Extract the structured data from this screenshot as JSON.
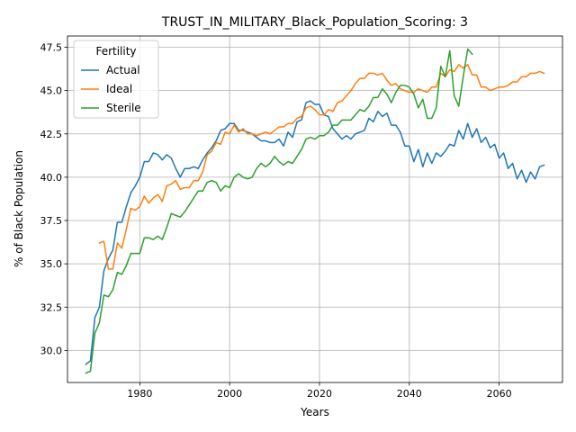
{
  "chart_data": {
    "type": "line",
    "title": "TRUST_IN_MILITARY_Black_Population_Scoring: 3",
    "xlabel": "Years",
    "ylabel": "% of Black Population",
    "xlim": [
      1963.9,
      2074.1
    ],
    "ylim": [
      28.15,
      48.15
    ],
    "xticks": [
      1980,
      2000,
      2020,
      2040,
      2060
    ],
    "yticks": [
      30.0,
      32.5,
      35.0,
      37.5,
      40.0,
      42.5,
      45.0,
      47.5
    ],
    "xtick_labels": [
      "1980",
      "2000",
      "2020",
      "2040",
      "2060"
    ],
    "ytick_labels": [
      "30.0",
      "32.5",
      "35.0",
      "37.5",
      "40.0",
      "42.5",
      "45.0",
      "47.5"
    ],
    "grid": true,
    "legend": {
      "title": "Fertility",
      "placement": "top-left"
    },
    "series": [
      {
        "name": "Actual",
        "color": "#1f77b4",
        "x": [
          1968,
          1969,
          1970,
          1971,
          1972,
          1973,
          1974,
          1975,
          1976,
          1977,
          1978,
          1979,
          1980,
          1981,
          1982,
          1983,
          1984,
          1985,
          1986,
          1987,
          1988,
          1989,
          1990,
          1991,
          1992,
          1993,
          1994,
          1995,
          1996,
          1997,
          1998,
          1999,
          2000,
          2001,
          2002,
          2003,
          2004,
          2005,
          2006,
          2007,
          2008,
          2009,
          2010,
          2011,
          2012,
          2013,
          2014,
          2015,
          2016,
          2017,
          2018,
          2019,
          2020,
          2021,
          2022,
          2023,
          2024,
          2025,
          2026,
          2027,
          2028,
          2029,
          2030,
          2031,
          2032,
          2033,
          2034,
          2035,
          2036,
          2037,
          2038,
          2039,
          2040,
          2041,
          2042,
          2043,
          2044,
          2045,
          2046,
          2047,
          2048,
          2049,
          2050,
          2051,
          2052,
          2053,
          2054,
          2055,
          2056,
          2057,
          2058,
          2059,
          2060,
          2061,
          2062,
          2063,
          2064,
          2065,
          2066,
          2067,
          2068,
          2069,
          2070
        ],
        "y": [
          29.2,
          29.4,
          31.9,
          32.5,
          34.6,
          35.3,
          35.8,
          37.4,
          37.4,
          38.3,
          39.1,
          39.5,
          40.0,
          40.9,
          40.9,
          41.4,
          41.3,
          41.0,
          41.3,
          41.1,
          40.5,
          40.0,
          40.5,
          40.5,
          40.6,
          40.5,
          41.0,
          41.4,
          41.7,
          42.1,
          42.7,
          42.8,
          43.1,
          43.1,
          42.7,
          42.7,
          42.6,
          42.5,
          42.3,
          42.1,
          42.1,
          42.0,
          42.0,
          42.2,
          41.8,
          42.6,
          42.3,
          43.2,
          43.3,
          44.3,
          44.4,
          44.2,
          44.2,
          43.6,
          43.5,
          42.8,
          42.5,
          42.2,
          42.4,
          42.2,
          42.5,
          42.6,
          42.7,
          43.4,
          43.2,
          43.8,
          43.5,
          43.7,
          43.0,
          43.0,
          42.6,
          41.8,
          41.8,
          40.9,
          41.6,
          40.6,
          41.4,
          40.8,
          41.4,
          41.2,
          41.5,
          41.9,
          41.8,
          42.7,
          42.2,
          43.1,
          42.3,
          42.8,
          42.0,
          42.3,
          41.7,
          41.9,
          41.1,
          41.4,
          40.5,
          40.8,
          39.9,
          40.4,
          39.7,
          40.3,
          39.9,
          40.6,
          40.7
        ]
      },
      {
        "name": "Ideal",
        "color": "#ff7f0e",
        "x": [
          1971,
          1972,
          1973,
          1974,
          1975,
          1976,
          1977,
          1978,
          1979,
          1980,
          1981,
          1982,
          1983,
          1984,
          1985,
          1986,
          1987,
          1988,
          1989,
          1990,
          1991,
          1992,
          1993,
          1994,
          1995,
          1996,
          1997,
          1998,
          1999,
          2000,
          2001,
          2002,
          2003,
          2004,
          2005,
          2006,
          2007,
          2008,
          2009,
          2010,
          2011,
          2012,
          2013,
          2014,
          2015,
          2016,
          2017,
          2018,
          2019,
          2020,
          2021,
          2022,
          2023,
          2024,
          2025,
          2026,
          2027,
          2028,
          2029,
          2030,
          2031,
          2032,
          2033,
          2034,
          2035,
          2036,
          2037,
          2038,
          2039,
          2040,
          2041,
          2042,
          2043,
          2044,
          2045,
          2046,
          2047,
          2048,
          2049,
          2050,
          2051,
          2052,
          2053,
          2054,
          2055,
          2056,
          2057,
          2058,
          2059,
          2060,
          2061,
          2062,
          2063,
          2064,
          2065,
          2066,
          2067,
          2068,
          2069,
          2070
        ],
        "y": [
          36.2,
          36.3,
          34.7,
          34.7,
          36.2,
          35.9,
          37.0,
          38.2,
          38.1,
          38.3,
          38.9,
          38.5,
          38.8,
          39.0,
          38.6,
          39.5,
          39.6,
          39.8,
          39.3,
          39.4,
          39.4,
          39.8,
          39.8,
          40.3,
          41.3,
          41.5,
          42.0,
          41.9,
          42.6,
          42.5,
          43.0,
          42.6,
          42.8,
          42.5,
          42.5,
          42.4,
          42.5,
          42.6,
          42.5,
          42.7,
          42.9,
          42.9,
          43.1,
          43.1,
          43.4,
          43.5,
          44.0,
          44.1,
          43.9,
          43.6,
          43.6,
          43.9,
          43.8,
          44.3,
          44.4,
          44.7,
          45.0,
          45.4,
          45.7,
          45.7,
          46.0,
          46.0,
          45.9,
          46.0,
          45.6,
          45.3,
          45.4,
          45.1,
          45.0,
          44.9,
          44.9,
          45.1,
          45.0,
          44.9,
          45.2,
          45.2,
          46.0,
          45.8,
          46.2,
          46.1,
          46.5,
          46.3,
          46.5,
          45.9,
          45.9,
          45.2,
          45.2,
          45.0,
          45.1,
          45.2,
          45.2,
          45.3,
          45.5,
          45.5,
          45.8,
          45.8,
          46.0,
          46.0,
          46.1,
          46.0
        ]
      },
      {
        "name": "Sterile",
        "color": "#2ca02c",
        "x": [
          1968,
          1969,
          1970,
          1971,
          1972,
          1973,
          1974,
          1975,
          1976,
          1977,
          1978,
          1979,
          1980,
          1981,
          1982,
          1983,
          1984,
          1985,
          1986,
          1987,
          1988,
          1989,
          1990,
          1991,
          1992,
          1993,
          1994,
          1995,
          1996,
          1997,
          1998,
          1999,
          2000,
          2001,
          2002,
          2003,
          2004,
          2005,
          2006,
          2007,
          2008,
          2009,
          2010,
          2011,
          2012,
          2013,
          2014,
          2015,
          2016,
          2017,
          2018,
          2019,
          2020,
          2021,
          2022,
          2023,
          2024,
          2025,
          2026,
          2027,
          2028,
          2029,
          2030,
          2031,
          2032,
          2033,
          2034,
          2035,
          2036,
          2037,
          2038,
          2039,
          2040,
          2041,
          2042,
          2043,
          2044,
          2045,
          2046,
          2047,
          2048,
          2049,
          2050,
          2051,
          2052,
          2053,
          2054
        ],
        "y": [
          28.7,
          28.8,
          31.0,
          31.6,
          33.2,
          33.1,
          33.5,
          34.5,
          34.4,
          34.9,
          35.6,
          35.6,
          35.6,
          36.5,
          36.5,
          36.4,
          36.6,
          36.4,
          37.1,
          37.9,
          37.8,
          37.7,
          38.0,
          38.4,
          38.8,
          39.2,
          39.2,
          39.7,
          39.8,
          39.7,
          39.2,
          39.5,
          39.4,
          40.0,
          40.2,
          40.0,
          39.9,
          40.0,
          40.5,
          40.8,
          40.6,
          40.8,
          41.2,
          40.9,
          40.7,
          40.9,
          40.8,
          41.2,
          41.6,
          42.2,
          42.3,
          42.2,
          42.4,
          42.4,
          42.6,
          43.0,
          43.0,
          43.3,
          43.3,
          43.3,
          43.6,
          43.9,
          43.8,
          44.1,
          44.6,
          44.6,
          45.1,
          44.8,
          44.3,
          44.9,
          45.3,
          45.3,
          45.2,
          44.8,
          44.0,
          44.5,
          43.4,
          43.4,
          44.0,
          46.4,
          45.8,
          47.3,
          44.7,
          44.1,
          45.8,
          47.4,
          47.1
        ]
      }
    ]
  }
}
